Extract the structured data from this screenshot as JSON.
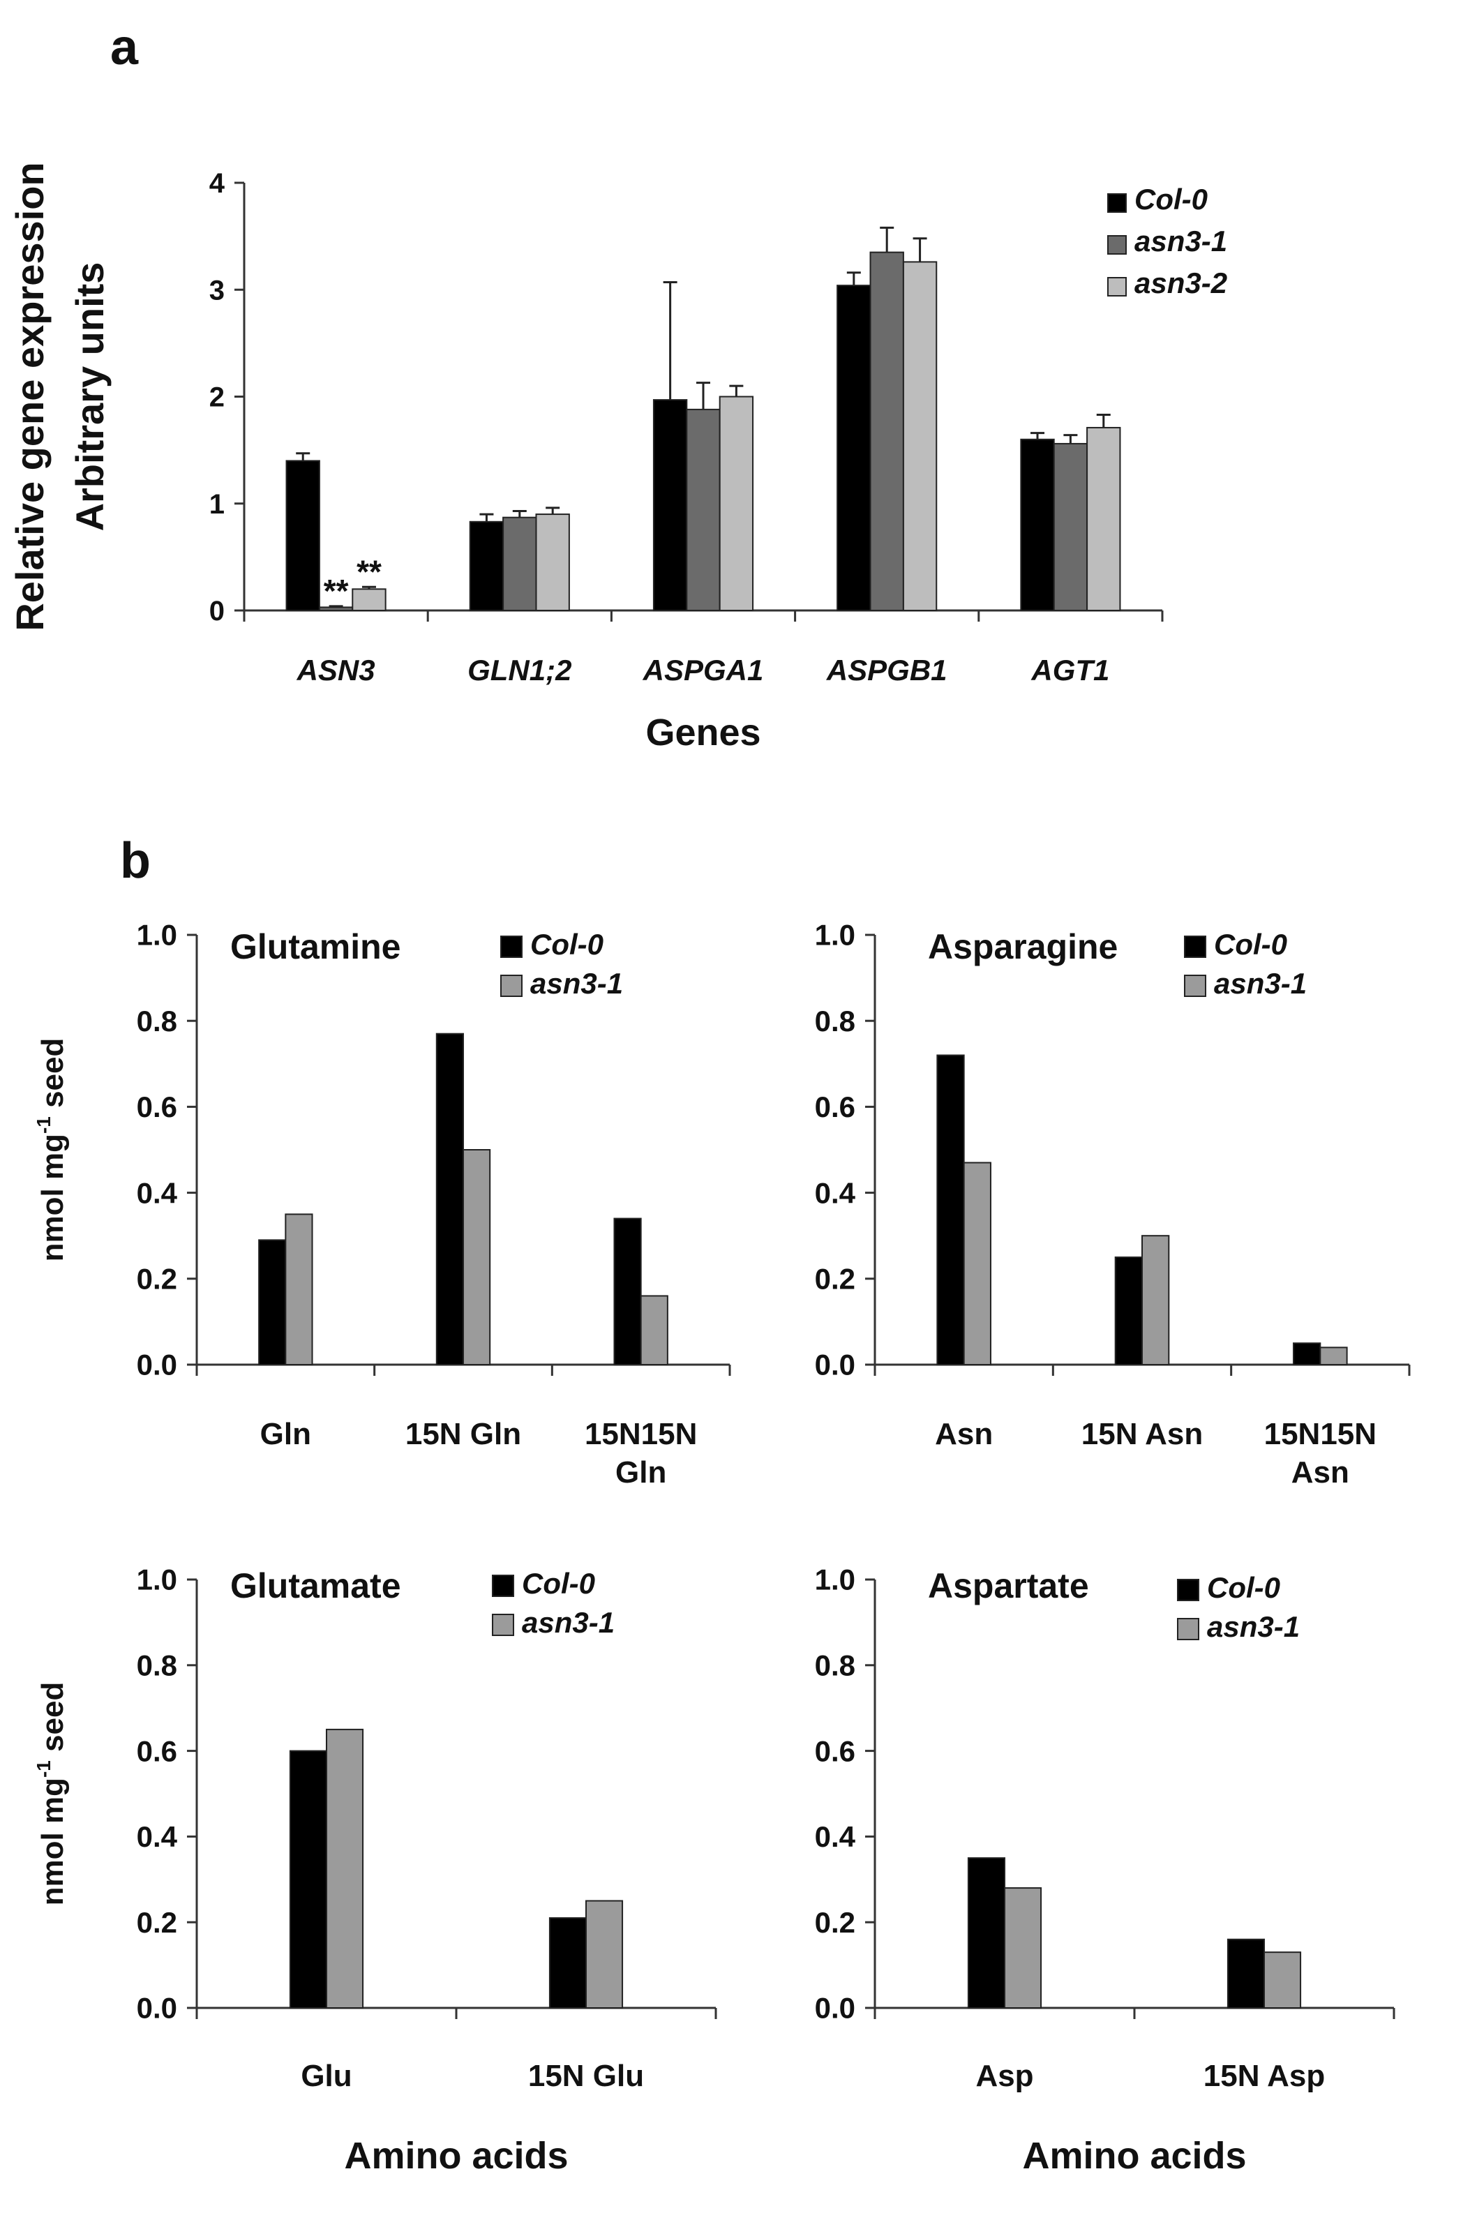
{
  "figure": {
    "panel_a_letter": "a",
    "panel_b_letter": "b"
  },
  "chart_data": [
    {
      "id": "a",
      "type": "bar",
      "title": "",
      "xlabel": "Genes",
      "ylabel": [
        "Relative gene expression",
        "Arbitrary units"
      ],
      "ylim": [
        0,
        4
      ],
      "yticks": [
        "0",
        "1",
        "2",
        "3",
        "4"
      ],
      "categories": [
        "ASN3",
        "GLN1;2",
        "ASPGA1",
        "ASPGB1",
        "AGT1"
      ],
      "categories_italic": true,
      "legend_position": "top-right",
      "legend_italic": true,
      "series": [
        {
          "name": "Col-0",
          "color": "#000000",
          "values": [
            1.4,
            0.83,
            1.97,
            3.04,
            1.6
          ],
          "errors": [
            0.07,
            0.07,
            1.1,
            0.12,
            0.06
          ]
        },
        {
          "name": "asn3-1",
          "color": "#6b6b6b",
          "values": [
            0.03,
            0.87,
            1.88,
            3.35,
            1.56
          ],
          "errors": [
            0.01,
            0.06,
            0.25,
            0.23,
            0.08
          ]
        },
        {
          "name": "asn3-2",
          "color": "#bdbdbd",
          "values": [
            0.2,
            0.9,
            2.0,
            3.26,
            1.71
          ],
          "errors": [
            0.02,
            0.06,
            0.1,
            0.22,
            0.12
          ]
        }
      ],
      "annotations": [
        {
          "category": "ASN3",
          "series": "asn3-1",
          "text": "**"
        },
        {
          "category": "ASN3",
          "series": "asn3-2",
          "text": "**"
        }
      ]
    },
    {
      "id": "b1",
      "type": "bar",
      "title": "Glutamine",
      "xlabel": "",
      "ylabel": "nmol mg",
      "ylabel_sup": "-1",
      "ylabel_suffix": " seed",
      "ylim": [
        0,
        1
      ],
      "yticks": [
        "0.0",
        "0.2",
        "0.4",
        "0.6",
        "0.8",
        "1.0"
      ],
      "categories": [
        [
          "Gln"
        ],
        [
          "15N Gln"
        ],
        [
          "15N15N",
          "Gln"
        ]
      ],
      "legend_position": "top-right",
      "legend_italic": true,
      "series": [
        {
          "name": "Col-0",
          "color": "#000000",
          "values": [
            0.29,
            0.77,
            0.34
          ]
        },
        {
          "name": "asn3-1",
          "color": "#9b9b9b",
          "values": [
            0.35,
            0.5,
            0.16
          ]
        }
      ]
    },
    {
      "id": "b2",
      "type": "bar",
      "title": "Asparagine",
      "xlabel": "",
      "ylabel": "",
      "ylim": [
        0,
        1
      ],
      "yticks": [
        "0.0",
        "0.2",
        "0.4",
        "0.6",
        "0.8",
        "1.0"
      ],
      "categories": [
        [
          "Asn"
        ],
        [
          "15N Asn"
        ],
        [
          "15N15N",
          "Asn"
        ]
      ],
      "legend_position": "top-right",
      "legend_italic": true,
      "series": [
        {
          "name": "Col-0",
          "color": "#000000",
          "values": [
            0.72,
            0.25,
            0.05
          ]
        },
        {
          "name": "asn3-1",
          "color": "#9b9b9b",
          "values": [
            0.47,
            0.3,
            0.04
          ]
        }
      ]
    },
    {
      "id": "b3",
      "type": "bar",
      "title": "Glutamate",
      "xlabel": "Amino acids",
      "ylabel": "nmol mg",
      "ylabel_sup": "-1",
      "ylabel_suffix": " seed",
      "ylim": [
        0,
        1
      ],
      "yticks": [
        "0.0",
        "0.2",
        "0.4",
        "0.6",
        "0.8",
        "1.0"
      ],
      "categories": [
        [
          "Glu"
        ],
        [
          "15N Glu"
        ]
      ],
      "legend_position": "top-right",
      "legend_italic": true,
      "series": [
        {
          "name": "Col-0",
          "color": "#000000",
          "values": [
            0.6,
            0.21
          ]
        },
        {
          "name": "asn3-1",
          "color": "#9b9b9b",
          "values": [
            0.65,
            0.25
          ]
        }
      ]
    },
    {
      "id": "b4",
      "type": "bar",
      "title": "Aspartate",
      "xlabel": "Amino acids",
      "ylabel": "",
      "ylim": [
        0,
        1
      ],
      "yticks": [
        "0.0",
        "0.2",
        "0.4",
        "0.6",
        "0.8",
        "1.0"
      ],
      "categories": [
        [
          "Asp"
        ],
        [
          "15N Asp"
        ]
      ],
      "legend_position": "top-right",
      "legend_italic": true,
      "series": [
        {
          "name": "Col-0",
          "color": "#000000",
          "values": [
            0.35,
            0.16
          ]
        },
        {
          "name": "asn3-1",
          "color": "#9b9b9b",
          "values": [
            0.28,
            0.13
          ]
        }
      ]
    }
  ]
}
